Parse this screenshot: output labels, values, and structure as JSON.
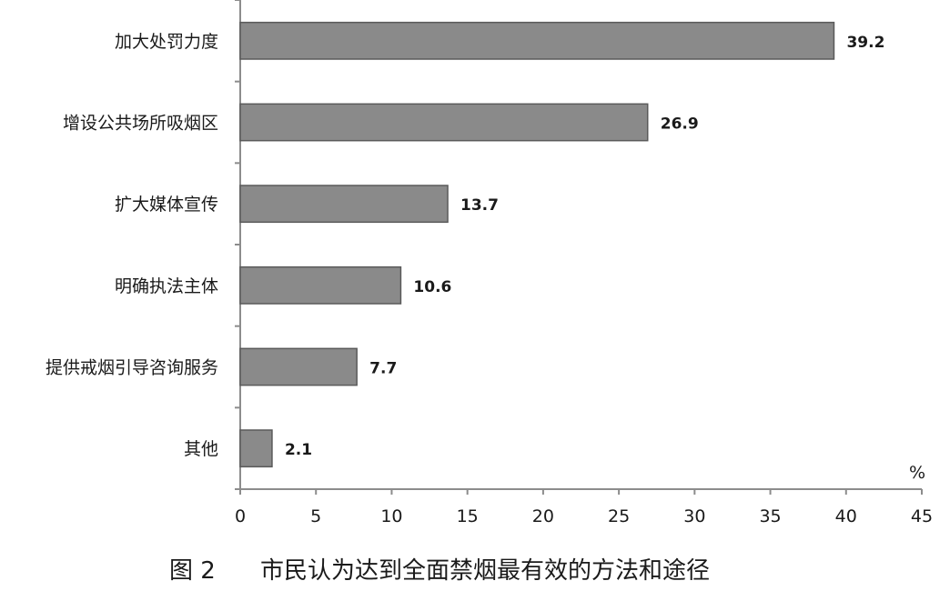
{
  "chart_data": {
    "type": "bar",
    "orientation": "horizontal",
    "categories": [
      "加大处罚力度",
      "增设公共场所吸烟区",
      "扩大媒体宣传",
      "明确执法主体",
      "提供戒烟引导咨询服务",
      "其他"
    ],
    "values": [
      39.2,
      26.9,
      13.7,
      10.6,
      7.7,
      2.1
    ],
    "value_labels": [
      "39.2",
      "26.9",
      "13.7",
      "10.6",
      "7.7",
      "2.1"
    ],
    "x_ticks": [
      0,
      5,
      10,
      15,
      20,
      25,
      30,
      35,
      40,
      45
    ],
    "xlim": [
      0,
      45
    ],
    "unit": "%",
    "caption_number": "图 2",
    "caption_text": "市民认为达到全面禁烟最有效的方法和途径",
    "grid": false,
    "legend": "none",
    "colors": {
      "bar": "#8a8a8a",
      "bar_edge": "#5a5a5a",
      "axis": "#8c8c8c"
    }
  }
}
